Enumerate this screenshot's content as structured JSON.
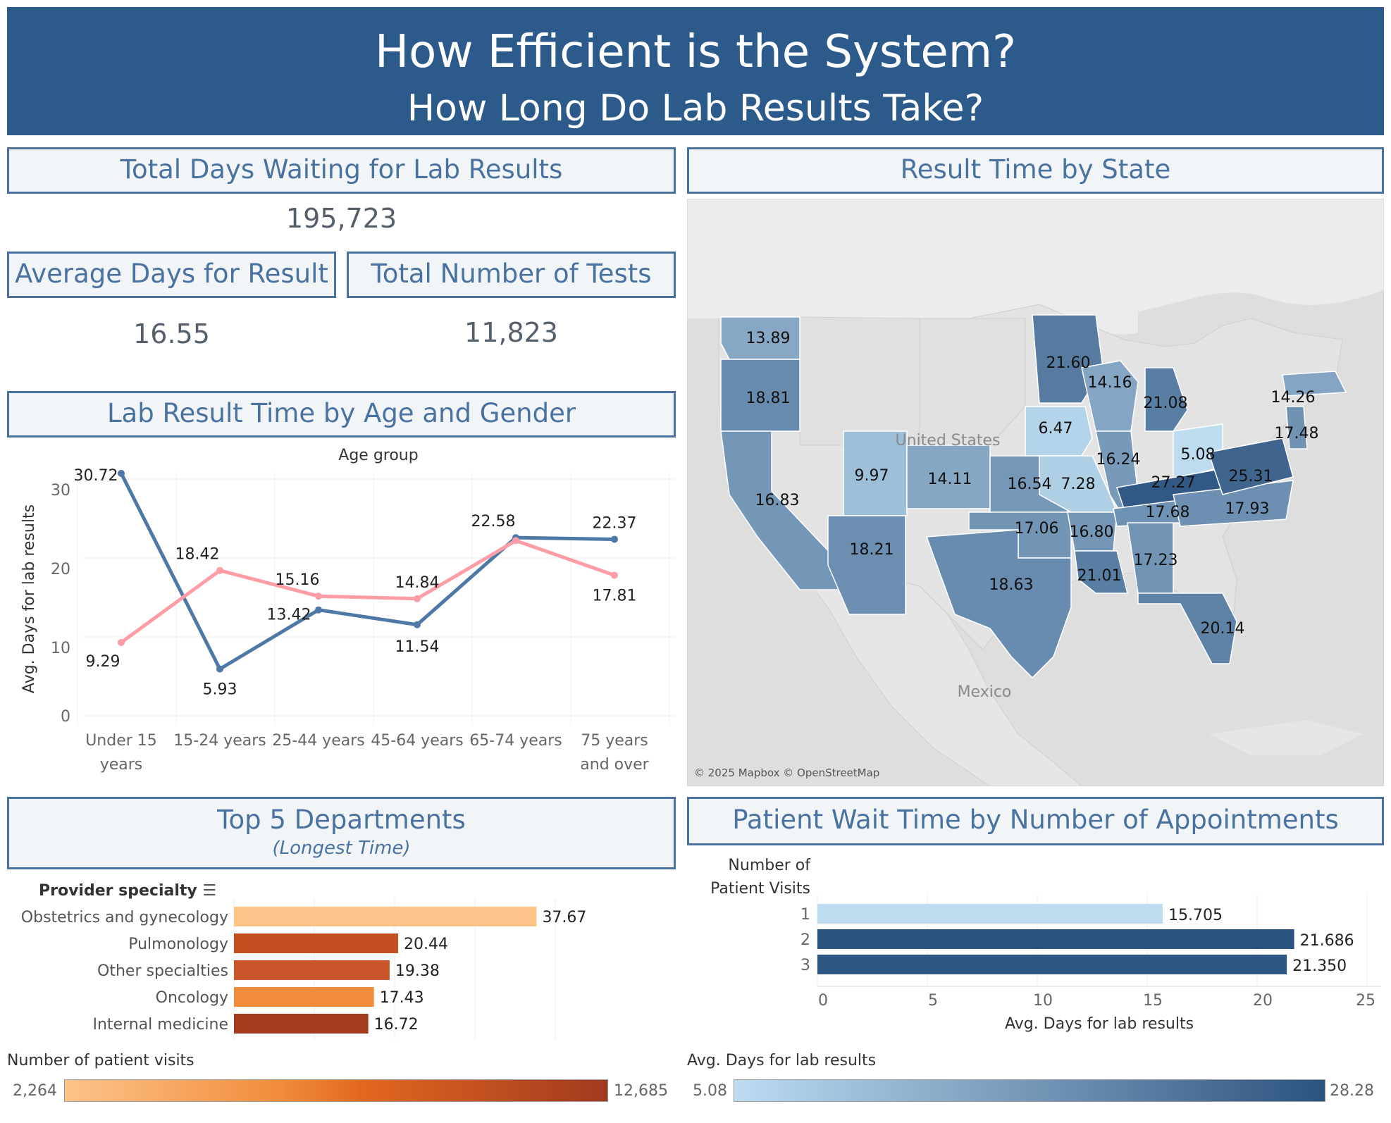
{
  "banner": {
    "title": "How Efficient is the System?",
    "subtitle": "How Long Do Lab Results Take?"
  },
  "kpis": {
    "total_days_title": "Total Days Waiting for Lab Results",
    "total_days_value": "195,723",
    "avg_days_title": "Average Days for Result",
    "avg_days_value": "16.55",
    "total_tests_title": "Total Number of Tests",
    "total_tests_value": "11,823"
  },
  "age_gender": {
    "title": "Lab Result Time by Age and Gender",
    "x_title": "Age group",
    "y_title": "Avg. Days for lab results",
    "y_ticks": [
      "30",
      "20",
      "10",
      "0"
    ]
  },
  "map": {
    "title": "Result Time by State",
    "country_label": "United States",
    "neighbor_label": "Mexico",
    "attribution": "© 2025 Mapbox © OpenStreetMap",
    "states": [
      {
        "state": "WA",
        "value": 13.89
      },
      {
        "state": "OR",
        "value": 18.81
      },
      {
        "state": "CA",
        "value": 16.83
      },
      {
        "state": "UT",
        "value": 9.97
      },
      {
        "state": "AZ",
        "value": 18.21
      },
      {
        "state": "CO",
        "value": 14.11
      },
      {
        "state": "KS",
        "value": 16.54
      },
      {
        "state": "OK",
        "value": 17.06
      },
      {
        "state": "TX",
        "value": 18.63
      },
      {
        "state": "MN",
        "value": 21.6
      },
      {
        "state": "WI",
        "value": 14.16
      },
      {
        "state": "IA",
        "value": 6.47
      },
      {
        "state": "MO",
        "value": 7.28
      },
      {
        "state": "AR",
        "value": 16.8
      },
      {
        "state": "LA",
        "value": 21.01
      },
      {
        "state": "IL",
        "value": 16.24
      },
      {
        "state": "MI",
        "value": 21.08
      },
      {
        "state": "OH",
        "value": 5.08
      },
      {
        "state": "KY",
        "value": 27.27
      },
      {
        "state": "TN",
        "value": 17.68
      },
      {
        "state": "AL",
        "value": 17.23
      },
      {
        "state": "FL",
        "value": 20.14
      },
      {
        "state": "NC",
        "value": 17.93
      },
      {
        "state": "VA",
        "value": 25.31
      },
      {
        "state": "NJ",
        "value": 17.48
      },
      {
        "state": "MA",
        "value": 14.26
      }
    ]
  },
  "departments": {
    "title": "Top 5 Departments",
    "subtitle": "(Longest Time)",
    "axis_header": "Provider specialty",
    "legend_title": "Number of patient visits",
    "legend_min": "2,264",
    "legend_max": "12,685"
  },
  "appointments": {
    "title": "Patient Wait Time by Number of Appointments",
    "y_header_1": "Number of",
    "y_header_2": "Patient Visits",
    "x_title": "Avg. Days for lab results",
    "x_ticks": [
      "0",
      "5",
      "10",
      "15",
      "20",
      "25"
    ],
    "legend_title": "Avg. Days for lab results",
    "legend_min": "5.08",
    "legend_max": "28.28"
  },
  "colors": {
    "banner": "#2c5b8b",
    "header_text": "#4a72a0",
    "male_line": "#4e79a7",
    "female_line": "#ff9da7",
    "orange_light": "#fdc48a",
    "orange_dark": "#a03a1f",
    "blue_light": "#bddcf0",
    "blue_dark": "#2c5380"
  },
  "chart_data": [
    {
      "type": "line",
      "title": "Lab Result Time by Age and Gender",
      "xlabel": "Age group",
      "ylabel": "Avg. Days for lab results",
      "categories": [
        "Under 15 years",
        "15-24 years",
        "25-44 years",
        "45-64 years",
        "65-74 years",
        "75 years and over"
      ],
      "ylim": [
        0,
        31
      ],
      "series": [
        {
          "values": [
            30.72,
            5.93,
            13.42,
            11.54,
            22.58,
            22.37
          ],
          "color": "#4e79a7"
        },
        {
          "values": [
            9.29,
            18.42,
            15.16,
            14.84,
            22.2,
            17.81
          ],
          "color": "#ff9da7"
        }
      ]
    },
    {
      "type": "bar",
      "orientation": "horizontal",
      "title": "Top 5 Departments",
      "categories": [
        "Obstetrics and gynecology",
        "Pulmonology",
        "Other specialties",
        "Oncology",
        "Internal medicine"
      ],
      "values": [
        37.67,
        20.44,
        19.38,
        17.43,
        16.72
      ],
      "labels": [
        "37.67",
        "20.44",
        "19.38",
        "17.43",
        "16.72"
      ],
      "colors": [
        "#fdc48a",
        "#c24f22",
        "#c9562a",
        "#f08c3a",
        "#a33c1e"
      ],
      "xlim": [
        0,
        45
      ],
      "grid": true
    },
    {
      "type": "bar",
      "orientation": "horizontal",
      "title": "Patient Wait Time by Number of Appointments",
      "xlabel": "Avg. Days for lab results",
      "ylabel": "Number of Patient Visits",
      "categories": [
        "1",
        "2",
        "3"
      ],
      "values": [
        15.705,
        21.686,
        21.35
      ],
      "labels": [
        "15.705",
        "21.686",
        "21.350"
      ],
      "colors": [
        "#bddcf0",
        "#2c5380",
        "#2e5682"
      ],
      "xlim": [
        0,
        25
      ],
      "grid": true
    }
  ]
}
